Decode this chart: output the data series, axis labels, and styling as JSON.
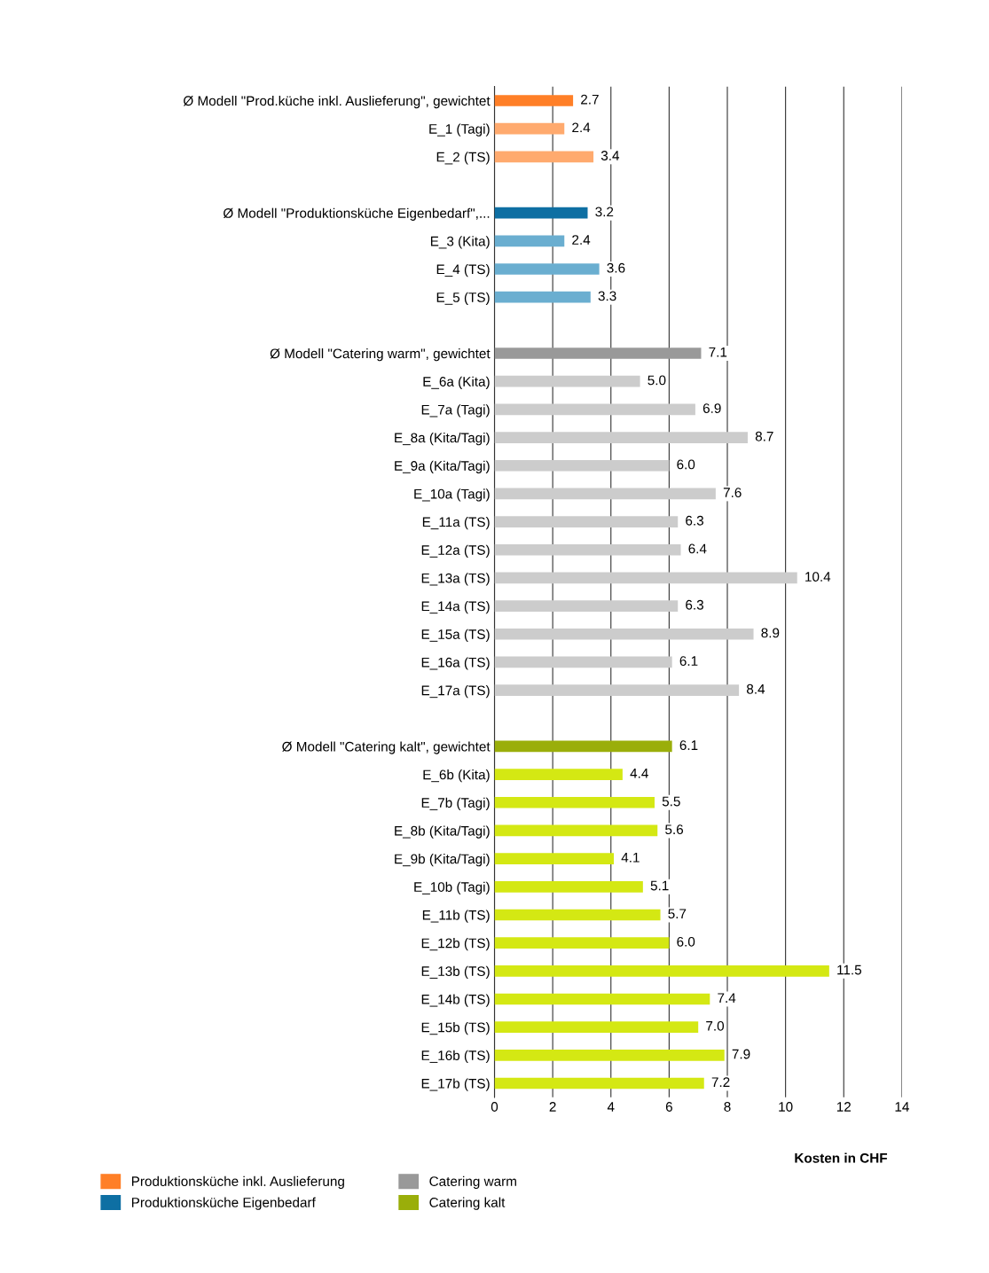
{
  "chart_data": {
    "type": "bar",
    "orientation": "horizontal",
    "categories": [
      "Ø Modell \"Prod.küche inkl. Auslieferung\", gewichtet",
      "E_1 (Tagi)",
      "E_2 (TS)",
      null,
      "Ø Modell \"Produktionsküche Eigenbedarf\",...",
      "E_3 (Kita)",
      "E_4 (TS)",
      "E_5 (TS)",
      null,
      "Ø Modell \"Catering warm\", gewichtet",
      "E_6a (Kita)",
      "E_7a (Tagi)",
      "E_8a (Kita/Tagi)",
      "E_9a (Kita/Tagi)",
      "E_10a (Tagi)",
      "E_11a (TS)",
      "E_12a (TS)",
      "E_13a (TS)",
      "E_14a (TS)",
      "E_15a (TS)",
      "E_16a (TS)",
      "E_17a (TS)",
      null,
      "Ø Modell \"Catering kalt\", gewichtet",
      "E_6b (Kita)",
      "E_7b (Tagi)",
      "E_8b (Kita/Tagi)",
      "E_9b (Kita/Tagi)",
      "E_10b (Tagi)",
      "E_11b (TS)",
      "E_12b (TS)",
      "E_13b (TS)",
      "E_14b (TS)",
      "E_15b (TS)",
      "E_16b (TS)",
      "E_17b (TS)"
    ],
    "series": [
      {
        "name": "Produktionsküche inkl. Auslieferung",
        "color": "#ff7f27",
        "colors": [
          "#ff7f27",
          "#ffaa6e",
          "#ffaa6e",
          null,
          null,
          null,
          null,
          null,
          null,
          null,
          null,
          null,
          null,
          null,
          null,
          null,
          null,
          null,
          null,
          null,
          null,
          null,
          null,
          null,
          null,
          null,
          null,
          null,
          null,
          null,
          null,
          null,
          null,
          null,
          null,
          null
        ],
        "values": [
          2.7,
          2.4,
          3.4,
          null,
          null,
          null,
          null,
          null,
          null,
          null,
          null,
          null,
          null,
          null,
          null,
          null,
          null,
          null,
          null,
          null,
          null,
          null,
          null,
          null,
          null,
          null,
          null,
          null,
          null,
          null,
          null,
          null,
          null,
          null,
          null,
          null
        ],
        "value_labels": [
          "2.7",
          "2.4",
          "3.4",
          null,
          null,
          null,
          null,
          null,
          null,
          null,
          null,
          null,
          null,
          null,
          null,
          null,
          null,
          null,
          null,
          null,
          null,
          null,
          null,
          null,
          null,
          null,
          null,
          null,
          null,
          null,
          null,
          null,
          null,
          null,
          null,
          null
        ]
      },
      {
        "name": "Produktionsküche Eigenbedarf",
        "color": "#0e6fa3",
        "colors": [
          null,
          null,
          null,
          null,
          "#0e6fa3",
          "#6aaed0",
          "#6aaed0",
          "#6aaed0",
          null,
          null,
          null,
          null,
          null,
          null,
          null,
          null,
          null,
          null,
          null,
          null,
          null,
          null,
          null,
          null,
          null,
          null,
          null,
          null,
          null,
          null,
          null,
          null,
          null,
          null,
          null,
          null
        ],
        "values": [
          null,
          null,
          null,
          null,
          3.2,
          2.4,
          3.6,
          3.3,
          null,
          null,
          null,
          null,
          null,
          null,
          null,
          null,
          null,
          null,
          null,
          null,
          null,
          null,
          null,
          null,
          null,
          null,
          null,
          null,
          null,
          null,
          null,
          null,
          null,
          null,
          null,
          null
        ],
        "value_labels": [
          null,
          null,
          null,
          null,
          "3.2",
          "2.4",
          "3.6",
          "3.3",
          null,
          null,
          null,
          null,
          null,
          null,
          null,
          null,
          null,
          null,
          null,
          null,
          null,
          null,
          null,
          null,
          null,
          null,
          null,
          null,
          null,
          null,
          null,
          null,
          null,
          null,
          null,
          null
        ]
      },
      {
        "name": "Catering warm",
        "color": "#999999",
        "colors": [
          null,
          null,
          null,
          null,
          null,
          null,
          null,
          null,
          null,
          "#999999",
          "#cccccc",
          "#cccccc",
          "#cccccc",
          "#cccccc",
          "#cccccc",
          "#cccccc",
          "#cccccc",
          "#cccccc",
          "#cccccc",
          "#cccccc",
          "#cccccc",
          "#cccccc",
          null,
          null,
          null,
          null,
          null,
          null,
          null,
          null,
          null,
          null,
          null,
          null,
          null,
          null
        ],
        "values": [
          null,
          null,
          null,
          null,
          null,
          null,
          null,
          null,
          null,
          7.1,
          5.0,
          6.9,
          8.7,
          6.0,
          7.6,
          6.3,
          6.4,
          10.4,
          6.3,
          8.9,
          6.1,
          8.4,
          null,
          null,
          null,
          null,
          null,
          null,
          null,
          null,
          null,
          null,
          null,
          null,
          null,
          null
        ],
        "value_labels": [
          null,
          null,
          null,
          null,
          null,
          null,
          null,
          null,
          null,
          "7.1",
          "5.0",
          "6.9",
          "8.7",
          "6.0",
          "7.6",
          "6.3",
          "6.4",
          "10.4",
          "6.3",
          "8.9",
          "6.1",
          "8.4",
          null,
          null,
          null,
          null,
          null,
          null,
          null,
          null,
          null,
          null,
          null,
          null,
          null,
          null
        ]
      },
      {
        "name": "Catering kalt",
        "color": "#9aae0a",
        "colors": [
          null,
          null,
          null,
          null,
          null,
          null,
          null,
          null,
          null,
          null,
          null,
          null,
          null,
          null,
          null,
          null,
          null,
          null,
          null,
          null,
          null,
          null,
          null,
          "#9aae0a",
          "#d4e813",
          "#d4e813",
          "#d4e813",
          "#d4e813",
          "#d4e813",
          "#d4e813",
          "#d4e813",
          "#d4e813",
          "#d4e813",
          "#d4e813",
          "#d4e813",
          "#d4e813"
        ],
        "values": [
          null,
          null,
          null,
          null,
          null,
          null,
          null,
          null,
          null,
          null,
          null,
          null,
          null,
          null,
          null,
          null,
          null,
          null,
          null,
          null,
          null,
          null,
          null,
          6.1,
          4.4,
          5.5,
          5.6,
          4.1,
          5.1,
          5.7,
          6.0,
          11.5,
          7.4,
          7.0,
          7.9,
          7.2
        ],
        "value_labels": [
          null,
          null,
          null,
          null,
          null,
          null,
          null,
          null,
          null,
          null,
          null,
          null,
          null,
          null,
          null,
          null,
          null,
          null,
          null,
          null,
          null,
          null,
          null,
          "6.1",
          "4.4",
          "5.5",
          "5.6",
          "4.1",
          "5.1",
          "5.7",
          "6.0",
          "11.5",
          "7.4",
          "7.0",
          "7.9",
          "7.2"
        ]
      }
    ],
    "xlabel": "Kosten in CHF",
    "xlim": [
      0,
      14
    ],
    "xticks": [
      0,
      2,
      4,
      6,
      8,
      10,
      12,
      14
    ],
    "grid": "x",
    "legend": "bottom"
  }
}
